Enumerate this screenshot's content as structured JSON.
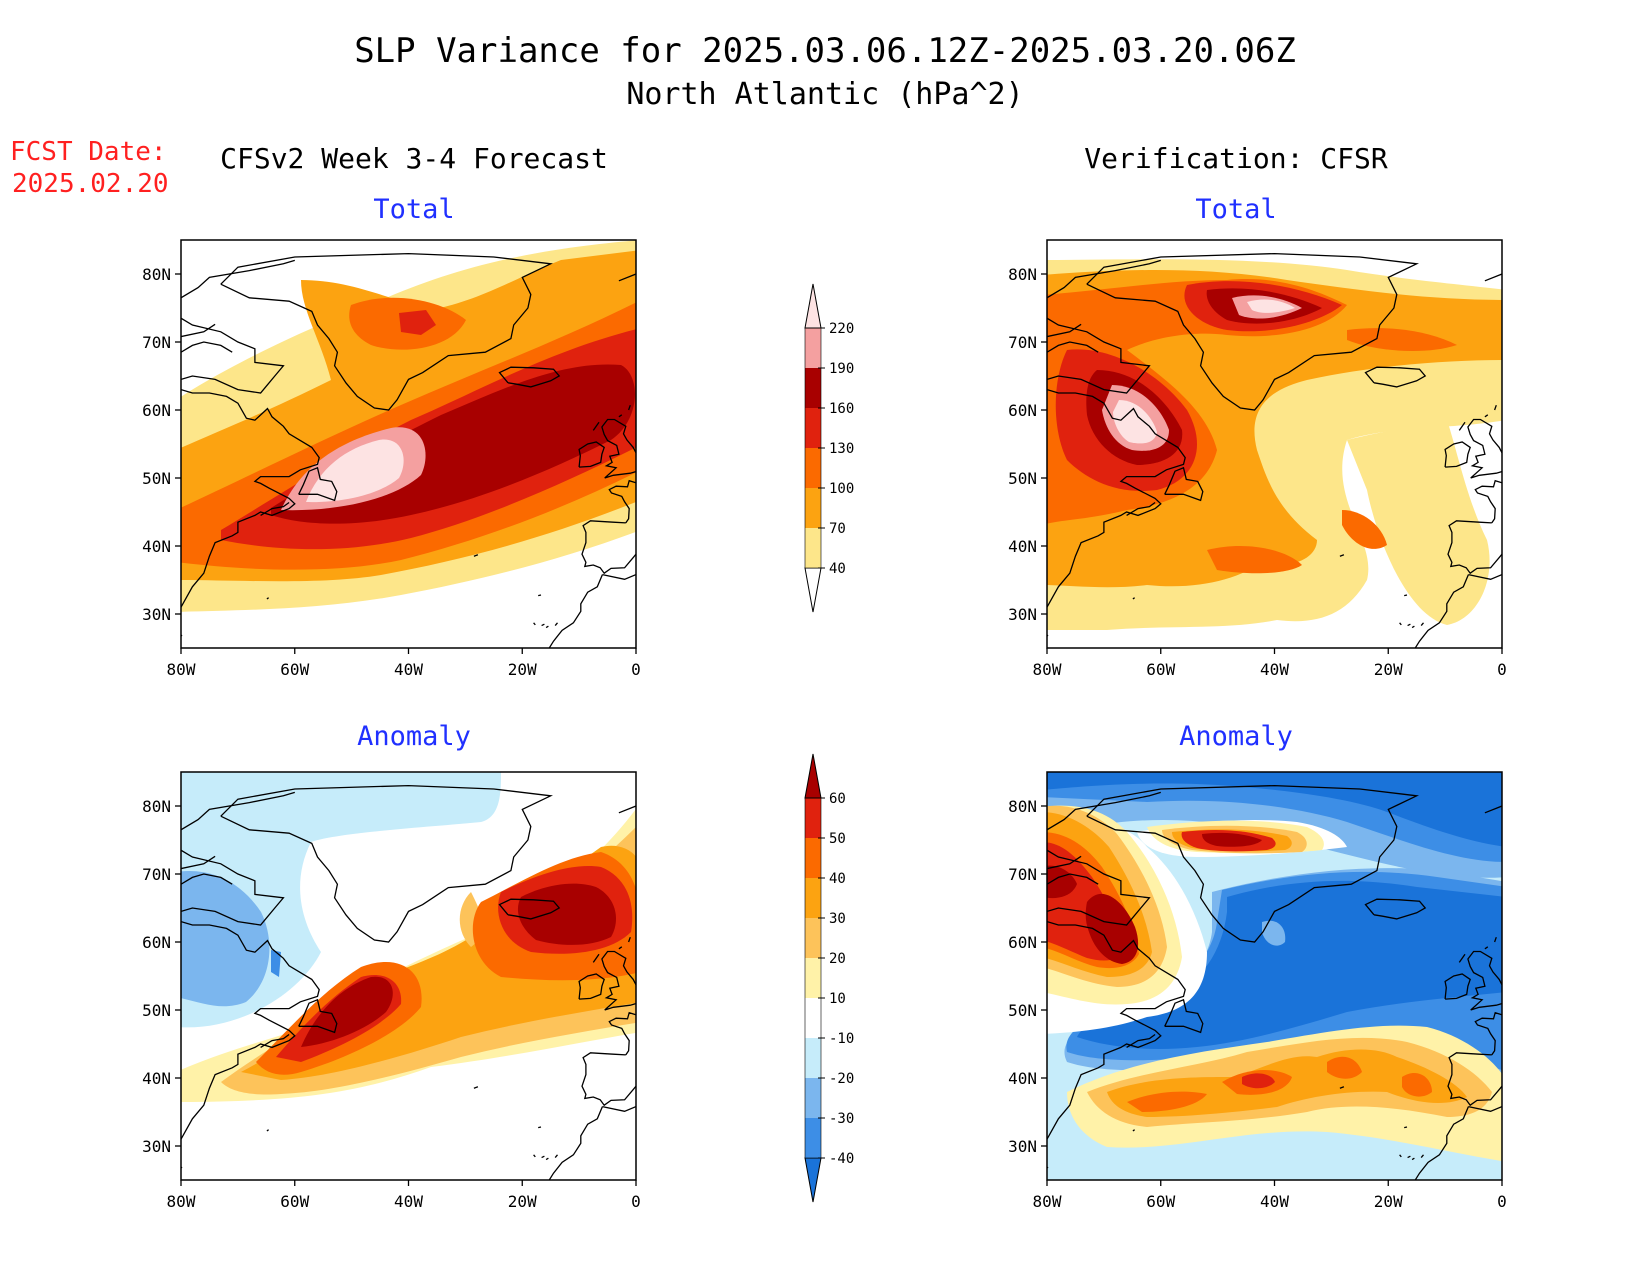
{
  "title": {
    "line1": "SLP Variance for 2025.03.06.12Z-2025.03.20.06Z",
    "line2": "North Atlantic (hPa^2)"
  },
  "fcst": {
    "label": "FCST Date:",
    "date": "2025.02.20"
  },
  "left_header": "CFSv2 Week 3-4 Forecast",
  "right_header": "Verification: CFSR",
  "panels": [
    {
      "id": "fcst-total",
      "subtitle": "Total",
      "field": "total"
    },
    {
      "id": "cfsr-total",
      "subtitle": "Total",
      "field": "total"
    },
    {
      "id": "fcst-anom",
      "subtitle": "Anomaly",
      "field": "anomaly"
    },
    {
      "id": "cfsr-anom",
      "subtitle": "Anomaly",
      "field": "anomaly"
    }
  ],
  "axes": {
    "lat_labels": [
      "80N",
      "70N",
      "60N",
      "50N",
      "40N",
      "30N"
    ],
    "lon_labels": [
      "80W",
      "60W",
      "40W",
      "20W",
      "0"
    ],
    "lon_range": [
      -80,
      0
    ],
    "lat_range": [
      25,
      85
    ]
  },
  "colorbars": {
    "total": {
      "labels": [
        "220",
        "190",
        "160",
        "130",
        "100",
        "70",
        "40"
      ],
      "colors_bottom_to_top": [
        "#ffffff",
        "#fde68a",
        "#fca311",
        "#fb6a00",
        "#e0220e",
        "#a80000",
        "#f4a0a0",
        "#fde3e3"
      ]
    },
    "anomaly": {
      "labels": [
        "60",
        "50",
        "40",
        "30",
        "20",
        "10",
        "-10",
        "-20",
        "-30",
        "-40"
      ],
      "colors_bottom_to_top": [
        "#1a73d9",
        "#3d8ee6",
        "#7bb6ee",
        "#c6ecfa",
        "#ffffff",
        "#fff2a8",
        "#fdc35a",
        "#fca311",
        "#fb6a00",
        "#e0220e",
        "#a80000"
      ]
    }
  }
}
